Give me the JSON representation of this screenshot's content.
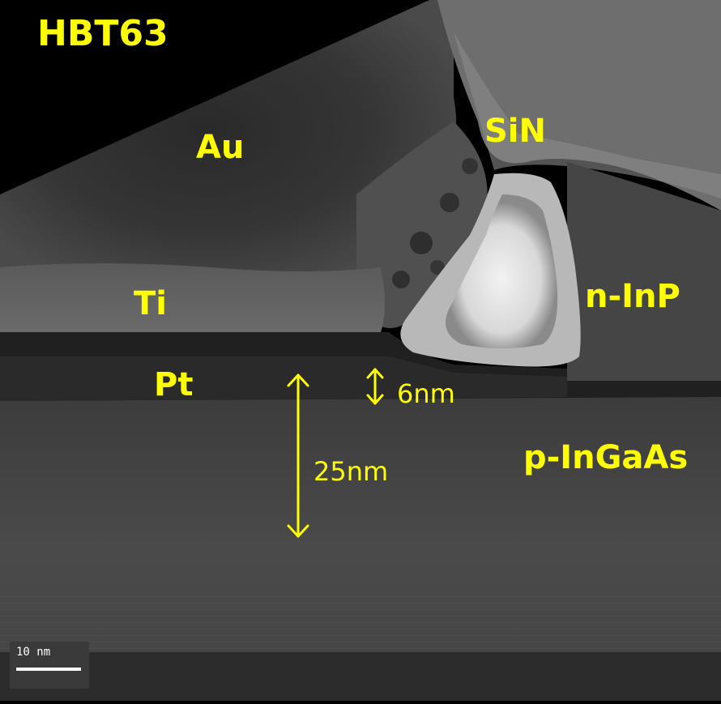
{
  "image": {
    "sample_label": "HBT63",
    "layers": {
      "au": "Au",
      "sin": "SiN",
      "ti": "Ti",
      "n_inp": "n-InP",
      "pt": "Pt",
      "p_ingaas": "p-InGaAs"
    },
    "dimensions": {
      "small": "6nm",
      "large": "25nm"
    },
    "scale_bar": "10 nm"
  },
  "colors": {
    "label": "#ffff00",
    "background": "#000000",
    "scale_text": "#ffffff"
  }
}
